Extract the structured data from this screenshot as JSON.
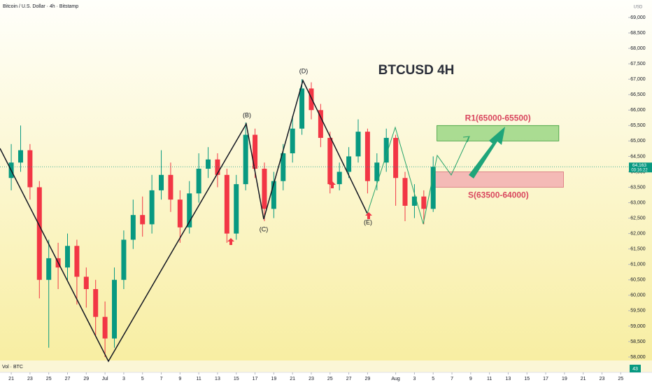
{
  "chart_data": {
    "type": "candlestick",
    "title": "BTCUSD 4H",
    "symbol_title": "Bitcoin / U.S. Dollar · 4h · Bitstamp",
    "currency": "USD",
    "up_color": "#089981",
    "down_color": "#f23645",
    "grid": false,
    "x": [
      0,
      1,
      2,
      3,
      4,
      5,
      6,
      7,
      8,
      9,
      10,
      11,
      12,
      13,
      14,
      15,
      16,
      17,
      18,
      19,
      20,
      21,
      22,
      23,
      24,
      25,
      26,
      27,
      28,
      29,
      30,
      31,
      32,
      33,
      34,
      35,
      36,
      37,
      38,
      39,
      40,
      41,
      42,
      43,
      44,
      45
    ],
    "open": [
      63800,
      64300,
      64700,
      63500,
      60500,
      61200,
      60900,
      61600,
      60600,
      60200,
      59300,
      58600,
      60500,
      61800,
      62600,
      62300,
      63400,
      63900,
      63100,
      62200,
      63300,
      64100,
      64400,
      63900,
      62000,
      63600,
      65200,
      64100,
      62800,
      63700,
      64600,
      65400,
      66700,
      66000,
      65100,
      63600,
      64000,
      64500,
      65300,
      63700,
      64300,
      65100,
      63800,
      62900,
      63200,
      62800
    ],
    "high": [
      64900,
      65500,
      64900,
      63700,
      61800,
      61700,
      62000,
      61800,
      60900,
      60500,
      59800,
      60900,
      62100,
      63100,
      63200,
      63900,
      64700,
      64300,
      63400,
      63700,
      64600,
      64800,
      64600,
      64100,
      63900,
      65600,
      65400,
      64300,
      64000,
      64900,
      65800,
      67000,
      66900,
      66200,
      65300,
      64300,
      64800,
      65700,
      65400,
      64600,
      65400,
      65200,
      64000,
      63600,
      63400,
      64500
    ],
    "low": [
      63400,
      64000,
      63100,
      59900,
      58300,
      60200,
      60500,
      59700,
      59600,
      58700,
      58000,
      58300,
      60200,
      61500,
      61900,
      62000,
      63100,
      62700,
      61700,
      62000,
      63000,
      63800,
      63500,
      61700,
      61800,
      63400,
      63800,
      62400,
      62500,
      63400,
      64300,
      65200,
      65700,
      64800,
      63300,
      63400,
      63800,
      64300,
      63300,
      63400,
      64000,
      62900,
      62400,
      62500,
      62300,
      62700
    ],
    "close": [
      64300,
      64700,
      63500,
      60500,
      61200,
      60900,
      61600,
      60600,
      60200,
      59300,
      58600,
      60500,
      61800,
      62600,
      62300,
      63400,
      63900,
      63100,
      62200,
      63300,
      64100,
      64400,
      63900,
      62000,
      63600,
      65200,
      64100,
      62800,
      63700,
      64600,
      65400,
      66700,
      66000,
      65100,
      63600,
      64000,
      64500,
      65300,
      63700,
      64300,
      65100,
      63800,
      62900,
      63200,
      62800,
      64163
    ],
    "last_price": {
      "value": 64163,
      "label": "64,163"
    },
    "countdown": "03:16:22",
    "xlim": [
      -1.2,
      65.8
    ],
    "ylim": [
      58000,
      69000
    ],
    "xticks": [
      {
        "value": 0,
        "label": "21"
      },
      {
        "value": 2,
        "label": "23"
      },
      {
        "value": 4,
        "label": "25"
      },
      {
        "value": 6,
        "label": "27"
      },
      {
        "value": 8,
        "label": "29"
      },
      {
        "value": 10,
        "label": "Jul"
      },
      {
        "value": 12,
        "label": "3"
      },
      {
        "value": 14,
        "label": "5"
      },
      {
        "value": 16,
        "label": "7"
      },
      {
        "value": 18,
        "label": "9"
      },
      {
        "value": 20,
        "label": "11"
      },
      {
        "value": 22,
        "label": "13"
      },
      {
        "value": 24,
        "label": "15"
      },
      {
        "value": 26,
        "label": "17"
      },
      {
        "value": 28,
        "label": "19"
      },
      {
        "value": 30,
        "label": "21"
      },
      {
        "value": 32,
        "label": "23"
      },
      {
        "value": 34,
        "label": "25"
      },
      {
        "value": 36,
        "label": "27"
      },
      {
        "value": 38,
        "label": "29"
      },
      {
        "value": 41,
        "label": "Aug"
      },
      {
        "value": 43,
        "label": "3"
      },
      {
        "value": 45,
        "label": "5"
      },
      {
        "value": 47,
        "label": "7"
      },
      {
        "value": 49,
        "label": "9"
      },
      {
        "value": 51,
        "label": "11"
      },
      {
        "value": 53,
        "label": "13"
      },
      {
        "value": 55,
        "label": "15"
      },
      {
        "value": 57,
        "label": "17"
      },
      {
        "value": 59,
        "label": "19"
      },
      {
        "value": 61,
        "label": "21"
      },
      {
        "value": 63,
        "label": "23"
      },
      {
        "value": 65,
        "label": "25"
      }
    ],
    "yticks": [
      {
        "value": 58000,
        "label": "58,000"
      },
      {
        "value": 58500,
        "label": "58,500"
      },
      {
        "value": 59000,
        "label": "59,000"
      },
      {
        "value": 59500,
        "label": "59,500"
      },
      {
        "value": 60000,
        "label": "60,000"
      },
      {
        "value": 60500,
        "label": "60,500"
      },
      {
        "value": 61000,
        "label": "61,000"
      },
      {
        "value": 61500,
        "label": "61,500"
      },
      {
        "value": 62000,
        "label": "62,000"
      },
      {
        "value": 62500,
        "label": "62,500"
      },
      {
        "value": 63000,
        "label": "63,000"
      },
      {
        "value": 63500,
        "label": "63,500"
      },
      {
        "value": 64000,
        "label": "64,000"
      },
      {
        "value": 64500,
        "label": "64,500"
      },
      {
        "value": 65000,
        "label": "65,000"
      },
      {
        "value": 65500,
        "label": "65,500"
      },
      {
        "value": 66000,
        "label": "66,000"
      },
      {
        "value": 66500,
        "label": "66,500"
      },
      {
        "value": 67000,
        "label": "67,000"
      },
      {
        "value": 67500,
        "label": "67,500"
      },
      {
        "value": 68000,
        "label": "68,000"
      },
      {
        "value": 68500,
        "label": "68,500"
      },
      {
        "value": 69000,
        "label": "69,000"
      }
    ],
    "zones": [
      {
        "label": "R1(65000-65500)",
        "low": 65000,
        "high": 65500,
        "x0": 45.4,
        "x1": 58.4,
        "color": "#8fd17a"
      },
      {
        "label": "S(63500-64000)",
        "low": 63500,
        "high": 64000,
        "x0": 45.0,
        "x1": 58.9,
        "color": "#f2a6ae"
      }
    ],
    "wave_labels": [
      "(B)",
      "(C)",
      "(D)",
      "(E)"
    ],
    "volume_label": "Vol · BTC",
    "volume_last": 43
  }
}
